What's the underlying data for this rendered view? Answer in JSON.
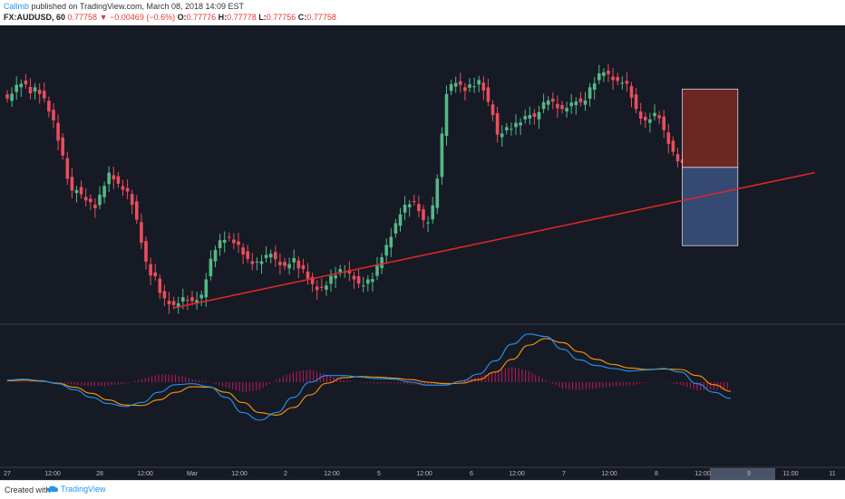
{
  "header": {
    "author": "Callmb",
    "published_text": "published on TradingView.com, March 08, 2018 14:09 EST",
    "symbol": "FX:AUDUSD, 60",
    "last": "0.77758",
    "change": "−0.00469 (−0.6%)",
    "o_label": "O:",
    "o_value": "0.77776",
    "h_label": "H:",
    "h_value": "0.77778",
    "l_label": "L:",
    "l_value": "0.77756",
    "c_label": "C:",
    "c_value": "0.77758"
  },
  "footer": {
    "created_with": "Created with",
    "brand": "TradingView"
  },
  "colors": {
    "background": "#161a25",
    "up": "#53b987",
    "down": "#eb4d5c",
    "trendline": "#e02828",
    "macd_line": "#2196f3",
    "signal_line": "#ff9800",
    "histogram": "#c2185b",
    "stop_zone": "#7a2a22",
    "target_zone": "#3c5280"
  },
  "chart_data": [
    {
      "type": "candlestick",
      "symbol": "FX:AUDUSD",
      "timeframe": "60",
      "x_tick_labels": [
        "27",
        "12:00",
        "28",
        "12:00",
        "Mar",
        "12:00",
        "2",
        "12:00",
        "5",
        "12:00",
        "6",
        "12:00",
        "7",
        "12:00",
        "8",
        "12:00",
        "9",
        "11:00",
        "11"
      ],
      "highlighted_tick": "9",
      "price_path": [
        58,
        60,
        62,
        63,
        62,
        60,
        61,
        60,
        58,
        55,
        52,
        47,
        42,
        36,
        32,
        33,
        31,
        30,
        29,
        28,
        31,
        34,
        37,
        36,
        34,
        33,
        32,
        29,
        24,
        18,
        12,
        9,
        8,
        4,
        2,
        1,
        0,
        1,
        2,
        2,
        1,
        2,
        3,
        8,
        13,
        16,
        18,
        19,
        19,
        18,
        17,
        15,
        13,
        12,
        12,
        13,
        14,
        15,
        13,
        12,
        11,
        12,
        13,
        11,
        10,
        8,
        6,
        5,
        5,
        6,
        8,
        9,
        10,
        10,
        9,
        8,
        6,
        6,
        7,
        8,
        11,
        14,
        17,
        20,
        23,
        26,
        28,
        29,
        29,
        27,
        24,
        24,
        28,
        36,
        48,
        60,
        62,
        63,
        62,
        61,
        62,
        62,
        63,
        61,
        57,
        54,
        48,
        49,
        50,
        50,
        51,
        52,
        53,
        54,
        53,
        55,
        57,
        58,
        57,
        56,
        55,
        56,
        57,
        58,
        57,
        58,
        61,
        63,
        65,
        66,
        65,
        64,
        63,
        63,
        62,
        59,
        55,
        53,
        52,
        53,
        54,
        53,
        49,
        46,
        43,
        41,
        40
      ],
      "price_ylim": [
        0,
        70
      ],
      "trendline": {
        "from_index": 36,
        "from_price": 0,
        "to_index": 158,
        "to_price": 36
      },
      "position": {
        "entry_price": 39,
        "stop_price": 61,
        "target_price": 17,
        "start_index": 146,
        "end_index": 158
      }
    },
    {
      "type": "line",
      "indicator": "MACD",
      "series": [
        {
          "role": "macd",
          "values": [
            0.4,
            0.6,
            0.3,
            -0.3,
            -1.5,
            -3.0,
            -4.2,
            -4.8,
            -4.0,
            -2.0,
            -0.5,
            -0.3,
            -0.9,
            -3.0,
            -6.0,
            -7.5,
            -6.0,
            -3.0,
            0.0,
            1.3,
            1.3,
            1.0,
            0.7,
            0.6,
            0.0,
            -0.6,
            -0.6,
            0.2,
            1.6,
            4.2,
            7.5,
            9.5,
            9.0,
            6.5,
            4.4,
            3.3,
            2.7,
            2.2,
            2.4,
            2.7,
            2.0,
            -0.3,
            -2.0,
            -3.2
          ]
        },
        {
          "role": "signal",
          "values": [
            0.3,
            0.4,
            0.2,
            -0.2,
            -1.0,
            -2.2,
            -3.5,
            -4.5,
            -4.6,
            -3.5,
            -2.0,
            -0.9,
            -1.0,
            -2.0,
            -4.0,
            -6.0,
            -6.5,
            -5.0,
            -2.5,
            -0.2,
            0.9,
            1.1,
            1.0,
            0.8,
            0.5,
            0.0,
            -0.3,
            -0.2,
            0.5,
            2.0,
            4.5,
            7.3,
            8.6,
            7.8,
            6.0,
            4.5,
            3.5,
            2.8,
            2.5,
            2.6,
            2.5,
            1.3,
            -0.5,
            -1.8
          ]
        }
      ],
      "histogram": [
        0.1,
        0.2,
        0.1,
        -0.1,
        -0.5,
        -0.8,
        -0.7,
        -0.3,
        0.6,
        1.5,
        1.5,
        0.6,
        0.1,
        -1.0,
        -2.0,
        -1.5,
        0.5,
        2.0,
        2.5,
        1.5,
        0.4,
        -0.1,
        -0.3,
        -0.2,
        -0.5,
        -0.6,
        -0.3,
        0.4,
        1.1,
        2.2,
        3.0,
        2.2,
        0.4,
        -1.3,
        -1.6,
        -1.2,
        -0.8,
        -0.6,
        -0.1,
        0.1,
        -0.5,
        -1.6,
        -1.5,
        -1.4
      ],
      "ylim": [
        -10,
        10
      ]
    }
  ]
}
